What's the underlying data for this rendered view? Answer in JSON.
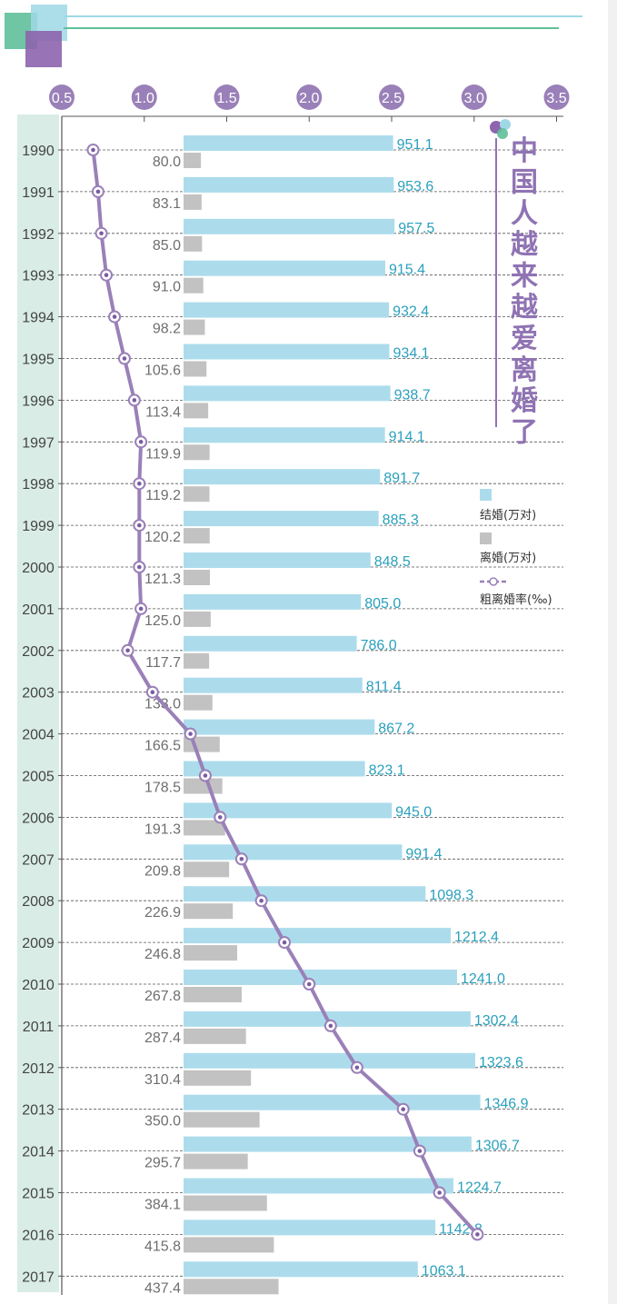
{
  "colors": {
    "marriage_bar": "#acdcec",
    "divorce_bar": "#c2c2c2",
    "rate_line": "#9a80b8",
    "rate_marker_fill": "#ffffff",
    "rate_marker_center": "#7a5ba4",
    "year_column_bg": "#d9ede6",
    "marriage_label": "#2aa0bd",
    "divorce_label": "#6e6e6e",
    "top_axis_circle": "#9a80b8",
    "title_color": "#8f73b3",
    "grid": "#555555"
  },
  "legend": {
    "marriages": "结婚(万对)",
    "divorces": "离婚(万对)",
    "rate": "粗离婚率(‰)"
  },
  "chart_data": {
    "type": "bar",
    "title": "中国人越来越爱离婚了",
    "categories": [
      "1990",
      "1991",
      "1992",
      "1993",
      "1994",
      "1995",
      "1996",
      "1997",
      "1998",
      "1999",
      "2000",
      "2001",
      "2002",
      "2003",
      "2004",
      "2005",
      "2006",
      "2007",
      "2008",
      "2009",
      "2010",
      "2011",
      "2012",
      "2013",
      "2014",
      "2015",
      "2016",
      "2017"
    ],
    "series": [
      {
        "name": "结婚(万对)",
        "values": [
          951.1,
          953.6,
          957.5,
          915.4,
          932.4,
          934.1,
          938.7,
          914.1,
          891.7,
          885.3,
          848.5,
          805.0,
          786.0,
          811.4,
          867.2,
          823.1,
          945.0,
          991.4,
          1098.3,
          1212.4,
          1241.0,
          1302.4,
          1323.6,
          1346.9,
          1306.7,
          1224.7,
          1142.8,
          1063.1
        ]
      },
      {
        "name": "离婚(万对)",
        "values": [
          80.0,
          83.1,
          85.0,
          91.0,
          98.2,
          105.6,
          113.4,
          119.9,
          119.2,
          120.2,
          121.3,
          125.0,
          117.7,
          133.0,
          166.5,
          178.5,
          191.3,
          209.8,
          226.9,
          246.8,
          267.8,
          287.4,
          310.4,
          350.0,
          295.7,
          384.1,
          415.8,
          437.4
        ]
      },
      {
        "name": "粗离婚率(‰)",
        "type": "line",
        "values": [
          0.69,
          0.72,
          0.74,
          0.77,
          0.82,
          0.88,
          0.94,
          0.98,
          0.97,
          0.97,
          0.97,
          0.98,
          0.9,
          1.05,
          1.28,
          1.37,
          1.46,
          1.59,
          1.71,
          1.85,
          2.0,
          2.13,
          2.29,
          2.57,
          2.67,
          2.79,
          3.02,
          null
        ]
      }
    ],
    "labels": {
      "marriages": [
        "951.1",
        "953.6",
        "957.5",
        "915.4",
        "932.4",
        "934.1",
        "938.7",
        "914.1",
        "891.7",
        "885.3",
        "848.5",
        "805.0",
        "786.0",
        "811.4",
        "867.2",
        "823.1",
        "945.0",
        "991.4",
        "1098.3",
        "1212.4",
        "1241.0",
        "1302.4",
        "1323.6",
        "1346.9",
        "1306.7",
        "1224.7",
        "1142.8",
        "1063.1"
      ],
      "divorces": [
        "80.0",
        "83.1",
        "85.0",
        "91.0",
        "98.2",
        "105.6",
        "113.4",
        "119.9",
        "119.2",
        "120.2",
        "121.3",
        "125.0",
        "117.7",
        "133.0",
        "166.5",
        "178.5",
        "191.3",
        "209.8",
        "226.9",
        "246.8",
        "267.8",
        "287.4",
        "310.4",
        "350.0",
        "295.7",
        "384.1",
        "415.8",
        "437.4"
      ]
    },
    "rate_axis": {
      "ticks": [
        "0.5",
        "1.0",
        "1.5",
        "2.0",
        "2.5",
        "3.0",
        "3.5"
      ],
      "range": [
        0.5,
        3.5
      ]
    },
    "grid": true,
    "legend_position": "right"
  }
}
